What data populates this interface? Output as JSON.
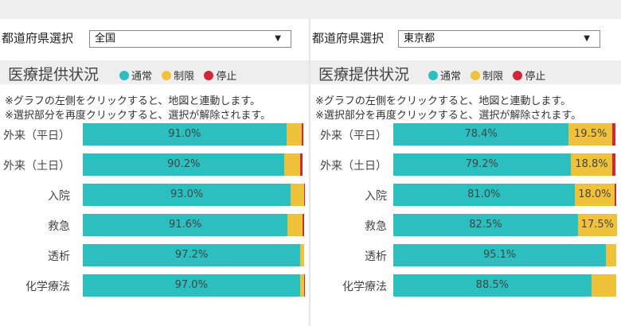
{
  "colors": {
    "normal": "#2bbfbf",
    "limited": "#f0c23c",
    "stopped": "#d0273a",
    "title_bg": "#eeeeee"
  },
  "left": {
    "select_label": "都道府県選択",
    "select_value": "全国",
    "title": "医療提供状況",
    "legend": [
      "通常",
      "制限",
      "停止"
    ],
    "note1": "※グラフの左側をクリックすると、地図と連動します。",
    "note2": "※選択部分を再度クリックすると、選択が解除されます。",
    "rows": [
      {
        "label": "外来（平日）",
        "normal": 91.0,
        "limited": 6.8,
        "stopped": 0.8,
        "normal_text": "91.0%"
      },
      {
        "label": "外来（土日）",
        "normal": 90.2,
        "limited": 7.0,
        "stopped": 1.0,
        "normal_text": "90.2%"
      },
      {
        "label": "入院",
        "normal": 93.0,
        "limited": 5.8,
        "stopped": 0.3,
        "normal_text": "93.0%"
      },
      {
        "label": "救急",
        "normal": 91.6,
        "limited": 6.5,
        "stopped": 0.8,
        "normal_text": "91.6%"
      },
      {
        "label": "透析",
        "normal": 97.2,
        "limited": 1.7,
        "stopped": 0.0,
        "normal_text": "97.2%"
      },
      {
        "label": "化学療法",
        "normal": 97.0,
        "limited": 1.8,
        "stopped": 0.5,
        "normal_text": "97.0%"
      }
    ]
  },
  "right": {
    "select_label": "都道府県選択",
    "select_value": "東京都",
    "title": "医療提供状況",
    "legend": [
      "通常",
      "制限",
      "停止"
    ],
    "note1": "※グラフの左側をクリックすると、地図と連動します。",
    "note2": "※選択部分を再度クリックすると、選択が解除されます。",
    "rows": [
      {
        "label": "外来（平日）",
        "normal": 78.4,
        "limited": 19.5,
        "stopped": 1.5,
        "normal_text": "78.4%",
        "limited_text": "19.5%"
      },
      {
        "label": "外来（土日）",
        "normal": 79.2,
        "limited": 18.8,
        "stopped": 1.4,
        "normal_text": "79.2%",
        "limited_text": "18.8%"
      },
      {
        "label": "入院",
        "normal": 81.0,
        "limited": 18.0,
        "stopped": 0.8,
        "normal_text": "81.0%",
        "limited_text": "18.0%"
      },
      {
        "label": "救急",
        "normal": 82.5,
        "limited": 17.5,
        "stopped": 0.0,
        "normal_text": "82.5%",
        "limited_text": "17.5%"
      },
      {
        "label": "透析",
        "normal": 95.1,
        "limited": 4.4,
        "stopped": 0.0,
        "normal_text": "95.1%"
      },
      {
        "label": "化学療法",
        "normal": 88.5,
        "limited": 11.0,
        "stopped": 0.0,
        "normal_text": "88.5%"
      }
    ]
  },
  "chart_data": [
    {
      "type": "bar",
      "orientation": "horizontal-stacked",
      "title": "医療提供状況",
      "categories": [
        "外来（平日）",
        "外来（土日）",
        "入院",
        "救急",
        "透析",
        "化学療法"
      ],
      "series": [
        {
          "name": "通常",
          "values": [
            91.0,
            90.2,
            93.0,
            91.6,
            97.2,
            97.0
          ]
        },
        {
          "name": "制限",
          "values": [
            6.8,
            7.0,
            5.8,
            6.5,
            1.7,
            1.8
          ]
        },
        {
          "name": "停止",
          "values": [
            0.8,
            1.0,
            0.3,
            0.8,
            0.0,
            0.5
          ]
        }
      ],
      "ylim": [
        0,
        100
      ]
    },
    {
      "type": "bar",
      "orientation": "horizontal-stacked",
      "title": "医療提供状況",
      "categories": [
        "外来（平日）",
        "外来（土日）",
        "入院",
        "救急",
        "透析",
        "化学療法"
      ],
      "series": [
        {
          "name": "通常",
          "values": [
            78.4,
            79.2,
            81.0,
            82.5,
            95.1,
            88.5
          ]
        },
        {
          "name": "制限",
          "values": [
            19.5,
            18.8,
            18.0,
            17.5,
            4.4,
            11.0
          ]
        },
        {
          "name": "停止",
          "values": [
            1.5,
            1.4,
            0.8,
            0.0,
            0.0,
            0.0
          ]
        }
      ],
      "ylim": [
        0,
        100
      ]
    }
  ]
}
